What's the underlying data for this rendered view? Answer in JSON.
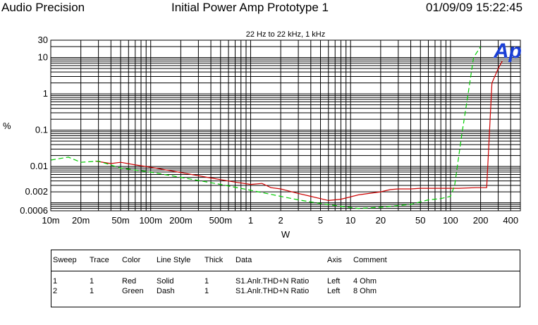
{
  "header": {
    "left": "Audio Precision",
    "center": "Initial Power Amp Prototype 1",
    "right": "01/09/09 15:22:45"
  },
  "logo_text": "Ap",
  "colors": {
    "red": "#cc0000",
    "green": "#00cc00",
    "grid": "#000000",
    "logo": "#1a3fd6"
  },
  "chart_data": {
    "type": "line",
    "subtitle": "22 Hz to 22 kHz, 1 kHz",
    "xlabel": "W",
    "ylabel": "%",
    "x_scale": "log",
    "y_scale": "log",
    "xlim": [
      0.01,
      500
    ],
    "ylim": [
      0.0006,
      30
    ],
    "x_tick_labels": [
      {
        "v": 0.01,
        "t": "10m"
      },
      {
        "v": 0.02,
        "t": "20m"
      },
      {
        "v": 0.05,
        "t": "50m"
      },
      {
        "v": 0.1,
        "t": "100m"
      },
      {
        "v": 0.2,
        "t": "200m"
      },
      {
        "v": 0.5,
        "t": "500m"
      },
      {
        "v": 1,
        "t": "1"
      },
      {
        "v": 2,
        "t": "2"
      },
      {
        "v": 5,
        "t": "5"
      },
      {
        "v": 10,
        "t": "10"
      },
      {
        "v": 20,
        "t": "20"
      },
      {
        "v": 50,
        "t": "50"
      },
      {
        "v": 100,
        "t": "100"
      },
      {
        "v": 200,
        "t": "200"
      },
      {
        "v": 400,
        "t": "400"
      }
    ],
    "y_tick_labels": [
      {
        "v": 30,
        "t": "30"
      },
      {
        "v": 10,
        "t": "10"
      },
      {
        "v": 1,
        "t": "1"
      },
      {
        "v": 0.1,
        "t": "0.1"
      },
      {
        "v": 0.01,
        "t": "0.01"
      },
      {
        "v": 0.002,
        "t": "0.002"
      },
      {
        "v": 0.0006,
        "t": "0.0006"
      }
    ],
    "grid": true,
    "series": [
      {
        "name": "Red",
        "color": "#cc0000",
        "dash": false,
        "x": [
          0.028,
          0.04,
          0.05,
          0.07,
          0.1,
          0.2,
          0.4,
          0.7,
          1,
          1.3,
          1.6,
          2,
          3,
          4,
          6,
          8,
          12,
          20,
          25,
          30,
          35,
          40,
          50,
          80,
          120,
          180,
          230,
          260,
          300,
          330
        ],
        "y": [
          0.014,
          0.012,
          0.013,
          0.011,
          0.0095,
          0.0068,
          0.0048,
          0.0037,
          0.0032,
          0.0034,
          0.0026,
          0.0024,
          0.0018,
          0.0015,
          0.00115,
          0.00125,
          0.00165,
          0.002,
          0.0023,
          0.0024,
          0.0024,
          0.0024,
          0.0025,
          0.0025,
          0.0025,
          0.0026,
          0.0026,
          2.0,
          5.0,
          8.0
        ]
      },
      {
        "name": "Green",
        "color": "#00cc00",
        "dash": true,
        "x": [
          0.01,
          0.015,
          0.02,
          0.03,
          0.05,
          0.1,
          0.2,
          0.5,
          1,
          2,
          3,
          5,
          8,
          12,
          20,
          40,
          60,
          80,
          100,
          110,
          130,
          150,
          170,
          200
        ],
        "y": [
          0.015,
          0.018,
          0.013,
          0.014,
          0.009,
          0.007,
          0.005,
          0.0032,
          0.0022,
          0.0015,
          0.0012,
          0.00095,
          0.0008,
          0.0007,
          0.00075,
          0.0009,
          0.0012,
          0.0013,
          0.0015,
          0.003,
          0.08,
          1.0,
          10.0,
          20.0
        ]
      }
    ]
  },
  "legend_table": {
    "headers": [
      "Sweep",
      "Trace",
      "Color",
      "Line Style",
      "Thick",
      "Data",
      "Axis",
      "Comment"
    ],
    "rows": [
      [
        "1",
        "1",
        "Red",
        "Solid",
        "1",
        "S1.Anlr.THD+N Ratio",
        "Left",
        "4 Ohm"
      ],
      [
        "2",
        "1",
        "Green",
        "Dash",
        "1",
        "S1.Anlr.THD+N Ratio",
        "Left",
        "8 Ohm"
      ]
    ]
  }
}
